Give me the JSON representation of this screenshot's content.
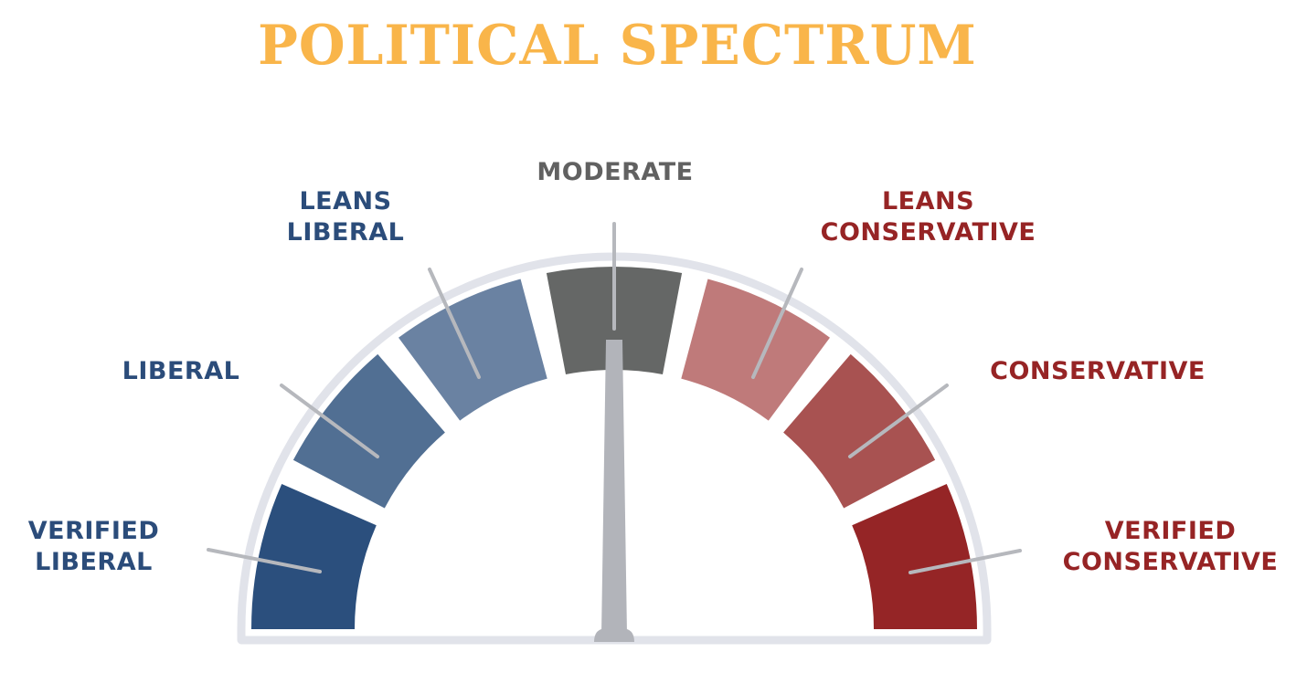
{
  "title": "POLITICAL SPECTRUM",
  "colors": {
    "title": "#f9b54a",
    "liberal_text": "#2b4c7a",
    "moderate_text": "#616161",
    "conservative_text": "#962425",
    "outline": "#e1e3ea",
    "pointer_line": "#b6b8bd",
    "needle": "#b2b4ba"
  },
  "segments": [
    {
      "name": "verified-liberal",
      "lines": [
        "VERIFIED",
        "LIBERAL"
      ],
      "color": "#2b4f7d"
    },
    {
      "name": "liberal",
      "lines": [
        "LIBERAL"
      ],
      "color": "#516f93"
    },
    {
      "name": "leans-liberal",
      "lines": [
        "LEANS",
        "LIBERAL"
      ],
      "color": "#6a82a2"
    },
    {
      "name": "moderate",
      "lines": [
        "MODERATE"
      ],
      "color": "#656766"
    },
    {
      "name": "leans-conservative",
      "lines": [
        "LEANS",
        "CONSERVATIVE"
      ],
      "color": "#bf7a7a"
    },
    {
      "name": "conservative",
      "lines": [
        "CONSERVATIVE"
      ],
      "color": "#a85251"
    },
    {
      "name": "verified-conservative",
      "lines": [
        "VERIFIED",
        "CONSERVATIVE"
      ],
      "color": "#952526"
    }
  ],
  "needle_segment": "moderate"
}
